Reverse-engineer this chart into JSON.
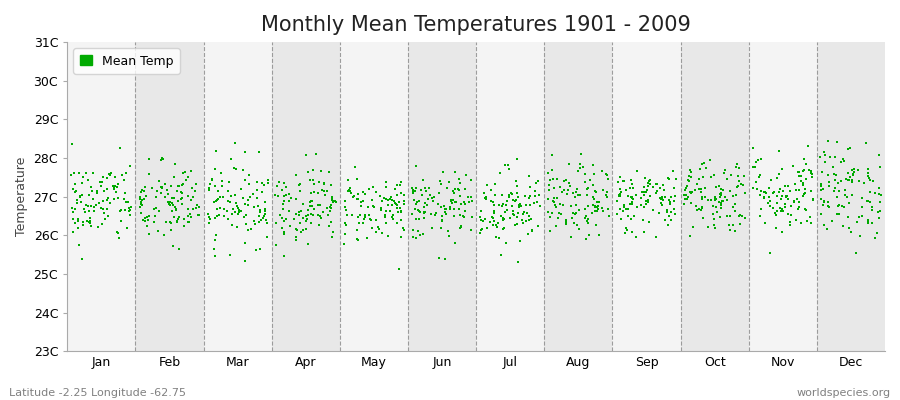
{
  "title": "Monthly Mean Temperatures 1901 - 2009",
  "ylabel": "Temperature",
  "ytick_labels": [
    "23C",
    "24C",
    "25C",
    "26C",
    "27C",
    "28C",
    "29C",
    "30C",
    "31C"
  ],
  "ytick_values": [
    23,
    24,
    25,
    26,
    27,
    28,
    29,
    30,
    31
  ],
  "ylim": [
    23,
    31
  ],
  "months": [
    "Jan",
    "Feb",
    "Mar",
    "Apr",
    "May",
    "Jun",
    "Jul",
    "Aug",
    "Sep",
    "Oct",
    "Nov",
    "Dec"
  ],
  "n_years": 109,
  "dot_color": "#00aa00",
  "dot_size": 3,
  "fig_bg_color": "#ffffff",
  "plot_bg_color": "#e8e8e8",
  "alt_band_color": "#f4f4f4",
  "legend_label": "Mean Temp",
  "footer_left": "Latitude -2.25 Longitude -62.75",
  "footer_right": "worldspecies.org",
  "title_fontsize": 15,
  "label_fontsize": 9,
  "tick_fontsize": 9,
  "footer_fontsize": 8,
  "seed": 42,
  "mean_temps": [
    26.85,
    26.8,
    26.85,
    26.8,
    26.7,
    26.7,
    26.75,
    26.85,
    26.9,
    27.05,
    27.1,
    27.15
  ],
  "std_temps": [
    0.55,
    0.55,
    0.55,
    0.5,
    0.45,
    0.45,
    0.5,
    0.48,
    0.42,
    0.5,
    0.55,
    0.62
  ],
  "dashed_line_color": "#888888",
  "spine_color": "#aaaaaa"
}
